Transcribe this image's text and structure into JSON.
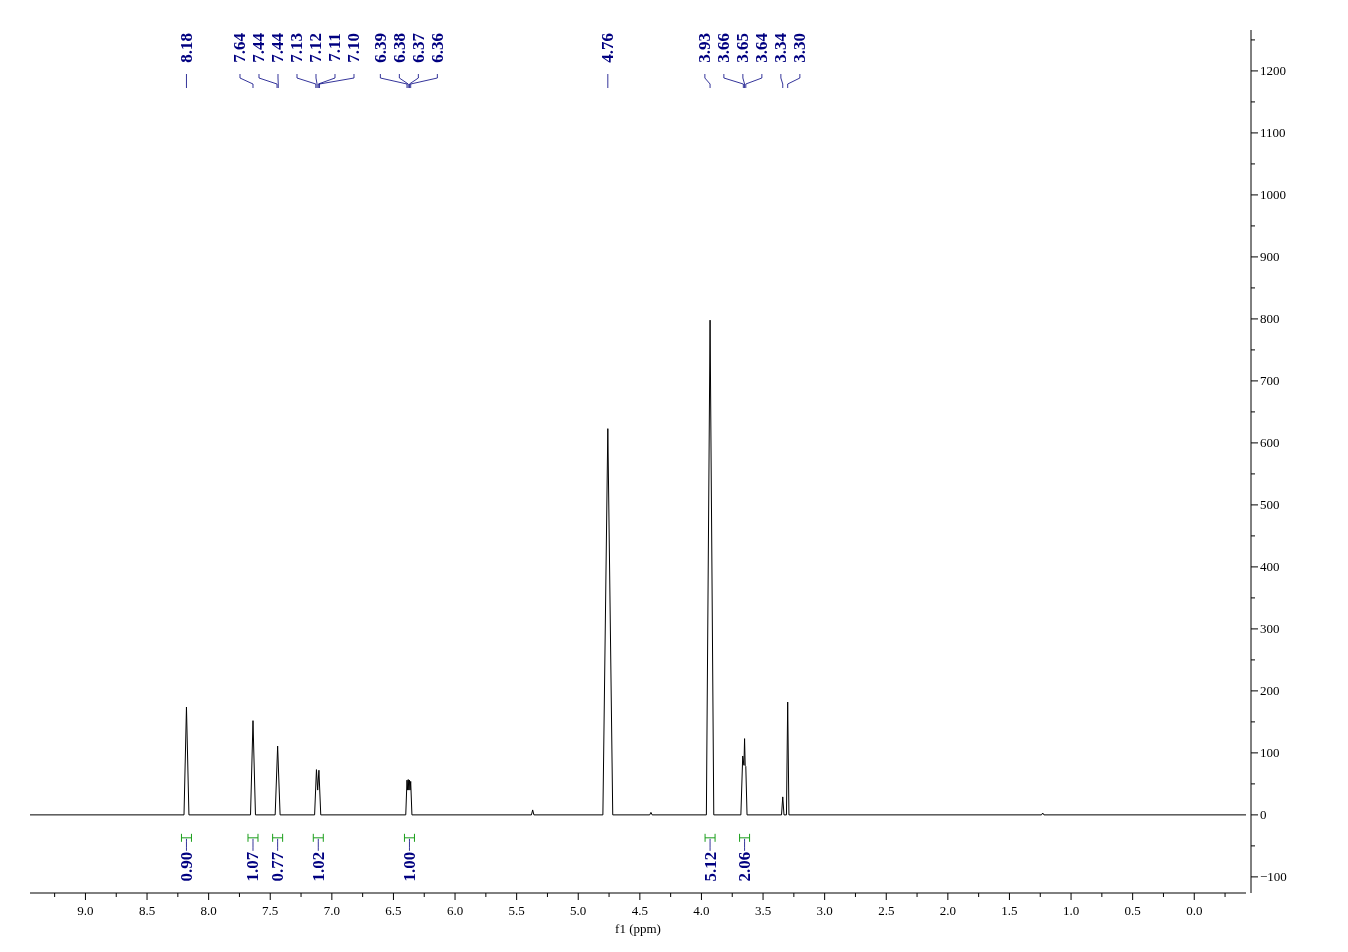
{
  "chart_data": {
    "type": "line",
    "xlabel": "f1 (ppm)",
    "xlim": [
      9.45,
      -0.42
    ],
    "ylim": [
      -126,
      1266
    ],
    "xticks": [
      {
        "value": 9.25,
        "label": null
      },
      {
        "value": 9,
        "label": "9.0"
      },
      {
        "value": 8.75,
        "label": null
      },
      {
        "value": 8.5,
        "label": "8.5"
      },
      {
        "value": 8.25,
        "label": null
      },
      {
        "value": 8,
        "label": "8.0"
      },
      {
        "value": 7.75,
        "label": null
      },
      {
        "value": 7.5,
        "label": "7.5"
      },
      {
        "value": 7.25,
        "label": null
      },
      {
        "value": 7,
        "label": "7.0"
      },
      {
        "value": 6.75,
        "label": null
      },
      {
        "value": 6.5,
        "label": "6.5"
      },
      {
        "value": 6.25,
        "label": null
      },
      {
        "value": 6,
        "label": "6.0"
      },
      {
        "value": 5.75,
        "label": null
      },
      {
        "value": 5.5,
        "label": "5.5"
      },
      {
        "value": 5.25,
        "label": null
      },
      {
        "value": 5,
        "label": "5.0"
      },
      {
        "value": 4.75,
        "label": null
      },
      {
        "value": 4.5,
        "label": "4.5"
      },
      {
        "value": 4.25,
        "label": null
      },
      {
        "value": 4,
        "label": "4.0"
      },
      {
        "value": 3.75,
        "label": null
      },
      {
        "value": 3.5,
        "label": "3.5"
      },
      {
        "value": 3.25,
        "label": null
      },
      {
        "value": 3,
        "label": "3.0"
      },
      {
        "value": 2.75,
        "label": null
      },
      {
        "value": 2.5,
        "label": "2.5"
      },
      {
        "value": 2.25,
        "label": null
      },
      {
        "value": 2,
        "label": "2.0"
      },
      {
        "value": 1.75,
        "label": null
      },
      {
        "value": 1.5,
        "label": "1.5"
      },
      {
        "value": 1.25,
        "label": null
      },
      {
        "value": 1,
        "label": "1.0"
      },
      {
        "value": 0.75,
        "label": null
      },
      {
        "value": 0.5,
        "label": "0.5"
      },
      {
        "value": 0.25,
        "label": null
      },
      {
        "value": 0,
        "label": "0.0"
      },
      {
        "value": -0.25,
        "label": null
      }
    ],
    "yticks": [
      -100,
      {
        "value": -50,
        "label": null
      },
      0,
      {
        "value": 50,
        "label": null
      },
      100,
      {
        "value": 150,
        "label": null
      },
      200,
      {
        "value": 250,
        "label": null
      },
      300,
      {
        "value": 350,
        "label": null
      },
      400,
      {
        "value": 450,
        "label": null
      },
      500,
      {
        "value": 550,
        "label": null
      },
      600,
      {
        "value": 650,
        "label": null
      },
      700,
      {
        "value": 750,
        "label": null
      },
      800,
      {
        "value": 850,
        "label": null
      },
      900,
      {
        "value": 950,
        "label": null
      },
      1000,
      {
        "value": 1050,
        "label": null
      },
      1100,
      {
        "value": 1150,
        "label": null
      },
      1200,
      {
        "value": 1250,
        "label": null
      }
    ],
    "tick_labels": "xy",
    "marker": "none",
    "line_style": "solid",
    "series": [
      {
        "color": "#000000",
        "x": [
          9.45,
          8.2,
          8.18,
          8.16,
          7.66,
          7.64,
          7.62,
          7.46,
          7.44,
          7.42,
          7.14,
          7.125,
          7.115,
          7.105,
          7.09,
          6.4,
          6.39,
          6.385,
          6.38,
          6.375,
          6.37,
          6.365,
          6.36,
          6.35,
          5.38,
          5.37,
          5.36,
          4.8,
          4.76,
          4.72,
          4.42,
          4.41,
          4.4,
          3.96,
          3.93,
          3.9,
          3.68,
          3.665,
          3.655,
          3.65,
          3.645,
          3.64,
          3.63,
          3.35,
          3.34,
          3.33,
          3.31,
          3.3,
          3.29,
          1.24,
          1.23,
          1.22,
          -0.42
        ],
        "values": [
          0,
          0,
          174,
          0,
          0,
          152,
          0,
          0,
          111,
          0,
          0,
          73,
          40,
          72,
          0,
          0,
          56,
          40,
          57,
          40,
          56,
          40,
          54,
          0,
          0,
          8,
          0,
          0,
          623,
          0,
          0,
          4,
          0,
          0,
          798,
          0,
          0,
          95,
          80,
          123,
          80,
          78,
          0,
          0,
          29,
          0,
          0,
          182,
          0,
          0,
          3,
          0,
          0
        ]
      }
    ],
    "annotations": [
      {
        "text": "8.18",
        "x": 8.18
      },
      {
        "text": "7.64",
        "x": 7.64
      },
      {
        "text": "7.44",
        "x": 7.445
      },
      {
        "text": "7.44",
        "x": 7.435
      },
      {
        "text": "7.13",
        "x": 7.13
      },
      {
        "text": "7.12",
        "x": 7.12
      },
      {
        "text": "7.11",
        "x": 7.11
      },
      {
        "text": "7.10",
        "x": 7.1
      },
      {
        "text": "6.39",
        "x": 6.39
      },
      {
        "text": "6.38",
        "x": 6.38
      },
      {
        "text": "6.37",
        "x": 6.37
      },
      {
        "text": "6.36",
        "x": 6.36
      },
      {
        "text": "4.76",
        "x": 4.76
      },
      {
        "text": "3.93",
        "x": 3.93
      },
      {
        "text": "3.66",
        "x": 3.66
      },
      {
        "text": "3.65",
        "x": 3.65
      },
      {
        "text": "3.64",
        "x": 3.64
      },
      {
        "text": "3.34",
        "x": 3.34
      },
      {
        "text": "3.30",
        "x": 3.3
      },
      {
        "text": "0.90",
        "x": 8.18,
        "y": -37
      },
      {
        "text": "1.07",
        "x": 7.64,
        "y": -37
      },
      {
        "text": "0.77",
        "x": 7.44,
        "y": -37
      },
      {
        "text": "1.02",
        "x": 7.11,
        "y": -37
      },
      {
        "text": "1.00",
        "x": 6.37,
        "y": -37
      },
      {
        "text": "5.12",
        "x": 3.93,
        "y": -37
      },
      {
        "text": "2.06",
        "x": 3.65,
        "y": -37
      }
    ]
  }
}
